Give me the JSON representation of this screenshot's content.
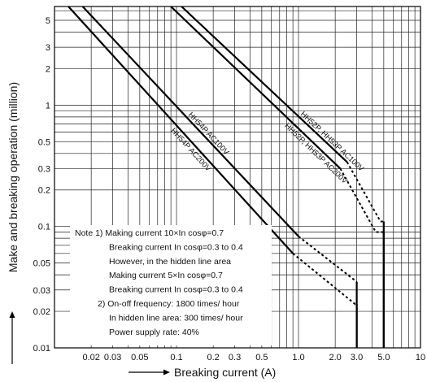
{
  "chart_data": {
    "type": "line",
    "title": "",
    "xlabel": "Breaking current (A)",
    "ylabel": "Make and breaking operation (million)",
    "x_scale": "log",
    "y_scale": "log",
    "xlim": [
      0.01,
      10
    ],
    "ylim": [
      0.01,
      6.5
    ],
    "grid": true,
    "x_ticks": [
      "0.02",
      "0.03",
      "0.05",
      "0.1",
      "0.2",
      "0.3",
      "0.5",
      "1.0",
      "2.0",
      "3.0",
      "5.0",
      "10"
    ],
    "x_tick_values": [
      0.02,
      0.03,
      0.05,
      0.1,
      0.2,
      0.3,
      0.5,
      1.0,
      2.0,
      3.0,
      5.0,
      10
    ],
    "y_ticks": [
      "0.01",
      "0.02",
      "0.03",
      "0.05",
      "0.1",
      "0.2",
      "0.3",
      "0.5",
      "1",
      "2",
      "3",
      "5"
    ],
    "y_tick_values": [
      0.01,
      0.02,
      0.03,
      0.05,
      0.1,
      0.2,
      0.3,
      0.5,
      1,
      2,
      3,
      5
    ],
    "series": [
      {
        "name": "HH54P AC100V",
        "solid": [
          [
            0.017,
            6.5
          ],
          [
            1.0,
            0.083
          ]
        ],
        "dashed": [
          [
            1.0,
            0.083
          ],
          [
            2.8,
            0.037
          ],
          [
            3.0,
            0.035
          ]
        ],
        "drop": [
          [
            3.0,
            0.035
          ],
          [
            3.0,
            0.01
          ]
        ]
      },
      {
        "name": "HH54P AC200V",
        "solid": [
          [
            0.013,
            6.5
          ],
          [
            0.9,
            0.06
          ]
        ],
        "dashed": [
          [
            0.9,
            0.06
          ],
          [
            2.9,
            0.023
          ],
          [
            3.0,
            0.023
          ]
        ],
        "drop": [
          [
            3.0,
            0.023
          ],
          [
            3.0,
            0.01
          ]
        ]
      },
      {
        "name": "HH52P, HH53P AC100V",
        "solid": [
          [
            0.11,
            6.5
          ],
          [
            2.5,
            0.34
          ]
        ],
        "dashed": [
          [
            2.5,
            0.34
          ],
          [
            4.7,
            0.11
          ],
          [
            5.0,
            0.11
          ]
        ],
        "drop": [
          [
            5.0,
            0.11
          ],
          [
            5.0,
            0.01
          ]
        ]
      },
      {
        "name": "HH52P, HH53P AC200V",
        "solid": [
          [
            0.09,
            6.5
          ],
          [
            2.2,
            0.3
          ]
        ],
        "dashed": [
          [
            2.2,
            0.3
          ],
          [
            4.3,
            0.09
          ],
          [
            5.0,
            0.09
          ]
        ],
        "drop": [
          [
            5.0,
            0.09
          ],
          [
            5.0,
            0.01
          ]
        ]
      }
    ]
  },
  "notes": [
    "Note 1) Making current  10×In cosφ=0.7",
    "Breaking current  In cosφ=0.3 to 0.4",
    "However, in the hidden line area",
    "Making current 5×In cosφ=0.7",
    "Breaking current  In cosφ=0.3 to 0.4",
    "2) On-off frequency: 1800 times/ hour",
    "In hidden line area: 300 times/ hour",
    "Power supply rate: 40%"
  ]
}
